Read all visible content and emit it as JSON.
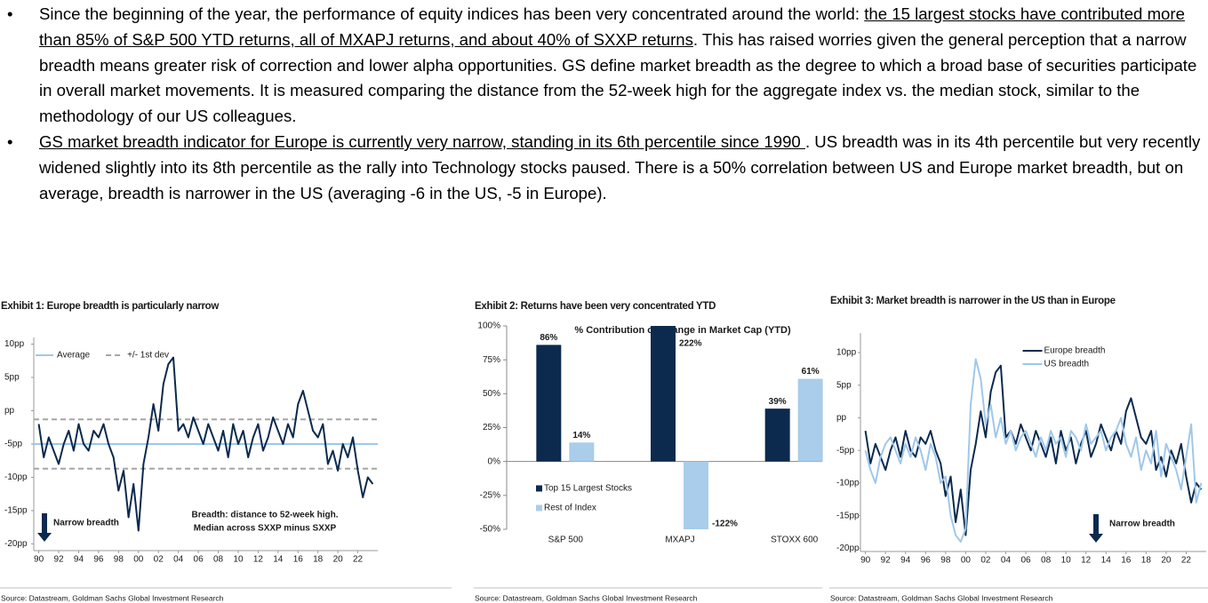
{
  "bullets": [
    {
      "segments": [
        {
          "text": "Since the beginning of the year, the performance of equity indices has been very concentrated around the world: ",
          "underline": false
        },
        {
          "text": "the 15 largest stocks have contributed more than 85% of S&P 500 YTD returns, all of MXAPJ returns, and about 40% of SXXP returns",
          "underline": true
        },
        {
          "text": ". This has raised worries given the general perception that a narrow breadth means greater risk of correction and lower alpha opportunities. GS define market breadth as the degree to which a broad base of securities participate in overall market movements. It is measured comparing the distance from the 52-week high for the aggregate index vs. the median stock, similar to the methodology of our US colleagues.",
          "underline": false
        }
      ]
    },
    {
      "segments": [
        {
          "text": "GS market breadth indicator for Europe is currently very narrow, standing in its 6th percentile since 1990 ",
          "underline": true
        },
        {
          "text": ". US breadth was in its 4th percentile but very recently widened slightly into its 8th percentile as the rally into Technology stocks paused. There is a 50% correlation between US and Europe market breadth, but on average, breadth is narrower in the US (averaging -6 in the US, -5 in Europe).",
          "underline": false
        }
      ]
    }
  ],
  "chart_data": [
    {
      "type": "line",
      "title": "Exhibit 1: Europe breadth is particularly narrow",
      "source": "Source: Datastream, Goldman Sachs Global Investment Research",
      "x": [
        1990,
        1990.5,
        1991,
        1991.5,
        1992,
        1992.5,
        1993,
        1993.5,
        1994,
        1994.5,
        1995,
        1995.5,
        1996,
        1996.5,
        1997,
        1997.5,
        1998,
        1998.5,
        1999,
        1999.5,
        2000,
        2000.5,
        2001,
        2001.5,
        2002,
        2002.5,
        2003,
        2003.5,
        2004,
        2004.5,
        2005,
        2005.5,
        2006,
        2006.5,
        2007,
        2007.5,
        2008,
        2008.5,
        2009,
        2009.5,
        2010,
        2010.5,
        2011,
        2011.5,
        2012,
        2012.5,
        2013,
        2013.5,
        2014,
        2014.5,
        2015,
        2015.5,
        2016,
        2016.5,
        2017,
        2017.5,
        2018,
        2018.5,
        2019,
        2019.5,
        2020,
        2020.5,
        2021,
        2021.5,
        2022,
        2022.5,
        2023,
        2023.5
      ],
      "series": [
        {
          "color": "#0b2a4e",
          "values": [
            -2,
            -7,
            -4,
            -6,
            -8,
            -5,
            -3,
            -6,
            -2,
            -5,
            -6,
            -3,
            -4,
            -2,
            -5,
            -7,
            -12,
            -9,
            -16,
            -11,
            -18,
            -8,
            -4,
            1,
            -3,
            4,
            7,
            8,
            -3,
            -2,
            -4,
            -1,
            -3,
            -5,
            -2,
            -4,
            -6,
            -3,
            -7,
            -2,
            -5,
            -3,
            -7,
            -4,
            -2,
            -6,
            -4,
            -1,
            -3,
            -5,
            -2,
            -4,
            1,
            3,
            0,
            -3,
            -4,
            -2,
            -8,
            -6,
            -9,
            -5,
            -7,
            -4,
            -9,
            -13,
            -10,
            -11
          ]
        }
      ],
      "reference_lines": [
        {
          "name": "Average",
          "value": -5,
          "color": "#9fc8ea",
          "dashed": false
        },
        {
          "name": "+/- 1st dev",
          "values": [
            -1.3,
            -8.7
          ],
          "color": "#a6a6a6",
          "dashed": true
        }
      ],
      "legend": "upper left",
      "annotations": [
        "Narrow breadth",
        "Breadth: distance to 52-week high.",
        "Median across SXXP minus SXXP"
      ],
      "xlim": [
        1989.5,
        2024
      ],
      "xticks": [
        {
          "value": 1990,
          "label": "90"
        },
        {
          "value": 1992,
          "label": "92"
        },
        {
          "value": 1994,
          "label": "94"
        },
        {
          "value": 1996,
          "label": "96"
        },
        {
          "value": 1998,
          "label": "98"
        },
        {
          "value": 2000,
          "label": "00"
        },
        {
          "value": 2002,
          "label": "02"
        },
        {
          "value": 2004,
          "label": "04"
        },
        {
          "value": 2006,
          "label": "06"
        },
        {
          "value": 2008,
          "label": "08"
        },
        {
          "value": 2010,
          "label": "10"
        },
        {
          "value": 2012,
          "label": "12"
        },
        {
          "value": 2014,
          "label": "14"
        },
        {
          "value": 2016,
          "label": "16"
        },
        {
          "value": 2018,
          "label": "18"
        },
        {
          "value": 2020,
          "label": "20"
        },
        {
          "value": 2022,
          "label": "22"
        }
      ],
      "ylim": [
        -21,
        11
      ],
      "yticks": [
        {
          "value": 10,
          "label": "10pp"
        },
        {
          "value": 5,
          "label": "5pp"
        },
        {
          "value": 0,
          "label": "pp"
        },
        {
          "value": -5,
          "label": "-5pp"
        },
        {
          "value": -10,
          "label": "-10pp"
        },
        {
          "value": -15,
          "label": "-15pp"
        },
        {
          "value": -20,
          "label": "-20pp"
        }
      ]
    },
    {
      "type": "bar",
      "title": "Exhibit 2: Returns have been very concentrated YTD",
      "subtitle": "% Contribution of Change in Market Cap (YTD)",
      "source": "Source: Datastream, Goldman Sachs Global Investment Research",
      "categories": [
        "S&P 500",
        "MXAPJ",
        "STOXX 600"
      ],
      "series": [
        {
          "name": "Top 15 Largest Stocks",
          "color": "#0b2a4e",
          "values": [
            86,
            222,
            39
          ],
          "value_labels": [
            "86%",
            "222%",
            "39%"
          ]
        },
        {
          "name": "Rest of Index",
          "color": "#a9cdea",
          "values": [
            14,
            -122,
            61
          ],
          "value_labels": [
            "14%",
            "-122%",
            "61%"
          ]
        }
      ],
      "legend": "lower left",
      "ylim": [
        -50,
        100
      ],
      "yticks": [
        {
          "value": 100,
          "label": "100%"
        },
        {
          "value": 75,
          "label": "75%"
        },
        {
          "value": 50,
          "label": "50%"
        },
        {
          "value": 25,
          "label": "25%"
        },
        {
          "value": 0,
          "label": "0%"
        },
        {
          "value": -25,
          "label": "-25%"
        },
        {
          "value": -50,
          "label": "-50%"
        }
      ]
    },
    {
      "type": "line",
      "title": "Exhibit 3: Market breadth is narrower in the US than in Europe",
      "source": "Source: Datastream, Goldman Sachs Global Investment Research",
      "x": [
        1990,
        1990.5,
        1991,
        1991.5,
        1992,
        1992.5,
        1993,
        1993.5,
        1994,
        1994.5,
        1995,
        1995.5,
        1996,
        1996.5,
        1997,
        1997.5,
        1998,
        1998.5,
        1999,
        1999.5,
        2000,
        2000.5,
        2001,
        2001.5,
        2002,
        2002.5,
        2003,
        2003.5,
        2004,
        2004.5,
        2005,
        2005.5,
        2006,
        2006.5,
        2007,
        2007.5,
        2008,
        2008.5,
        2009,
        2009.5,
        2010,
        2010.5,
        2011,
        2011.5,
        2012,
        2012.5,
        2013,
        2013.5,
        2014,
        2014.5,
        2015,
        2015.5,
        2016,
        2016.5,
        2017,
        2017.5,
        2018,
        2018.5,
        2019,
        2019.5,
        2020,
        2020.5,
        2021,
        2021.5,
        2022,
        2022.5,
        2023,
        2023.5
      ],
      "series": [
        {
          "name": "Europe breadth",
          "color": "#0b2a4e",
          "values": [
            -2,
            -7,
            -4,
            -6,
            -8,
            -5,
            -3,
            -6,
            -2,
            -5,
            -6,
            -3,
            -4,
            -2,
            -5,
            -7,
            -12,
            -9,
            -16,
            -11,
            -18,
            -8,
            -4,
            1,
            -3,
            4,
            7,
            8,
            -3,
            -2,
            -4,
            -1,
            -3,
            -5,
            -2,
            -4,
            -6,
            -3,
            -7,
            -2,
            -5,
            -3,
            -7,
            -4,
            -2,
            -6,
            -4,
            -1,
            -3,
            -5,
            -2,
            -4,
            1,
            3,
            0,
            -3,
            -4,
            -2,
            -8,
            -6,
            -9,
            -5,
            -7,
            -4,
            -9,
            -13,
            -10,
            -11
          ]
        },
        {
          "name": "US breadth",
          "color": "#9fc8ea",
          "values": [
            -5,
            -8,
            -10,
            -6,
            -4,
            -3,
            -5,
            -7,
            -4,
            -6,
            -3,
            -5,
            -8,
            -4,
            -6,
            -10,
            -9,
            -15,
            -18,
            -19,
            -17,
            2,
            9,
            6,
            -1,
            2,
            -3,
            0,
            -4,
            -2,
            -5,
            -3,
            -2,
            -4,
            -6,
            -3,
            -5,
            -2,
            -4,
            -3,
            -6,
            -2,
            -3,
            -5,
            -1,
            -4,
            -3,
            -2,
            -5,
            -3,
            -2,
            0,
            -4,
            -6,
            -3,
            -8,
            -5,
            -7,
            -2,
            -9,
            -4,
            -6,
            -8,
            -11,
            -6,
            -1,
            -13,
            -10
          ]
        }
      ],
      "legend": "upper center",
      "annotations": [
        "Narrow breadth"
      ],
      "xlim": [
        1989.5,
        2024
      ],
      "xticks": [
        {
          "value": 1990,
          "label": "90"
        },
        {
          "value": 1992,
          "label": "92"
        },
        {
          "value": 1994,
          "label": "94"
        },
        {
          "value": 1996,
          "label": "96"
        },
        {
          "value": 1998,
          "label": "98"
        },
        {
          "value": 2000,
          "label": "00"
        },
        {
          "value": 2002,
          "label": "02"
        },
        {
          "value": 2004,
          "label": "04"
        },
        {
          "value": 2006,
          "label": "06"
        },
        {
          "value": 2008,
          "label": "08"
        },
        {
          "value": 2010,
          "label": "10"
        },
        {
          "value": 2012,
          "label": "12"
        },
        {
          "value": 2014,
          "label": "14"
        },
        {
          "value": 2016,
          "label": "16"
        },
        {
          "value": 2018,
          "label": "18"
        },
        {
          "value": 2020,
          "label": "20"
        },
        {
          "value": 2022,
          "label": "22"
        }
      ],
      "ylim": [
        -20.5,
        13
      ],
      "yticks": [
        {
          "value": 10,
          "label": "10pp"
        },
        {
          "value": 5,
          "label": "5pp"
        },
        {
          "value": 0,
          "label": "pp"
        },
        {
          "value": -5,
          "label": "-5pp"
        },
        {
          "value": -10,
          "label": "-10pp"
        },
        {
          "value": -15,
          "label": "-15pp"
        },
        {
          "value": -20,
          "label": "-20pp"
        }
      ]
    }
  ]
}
